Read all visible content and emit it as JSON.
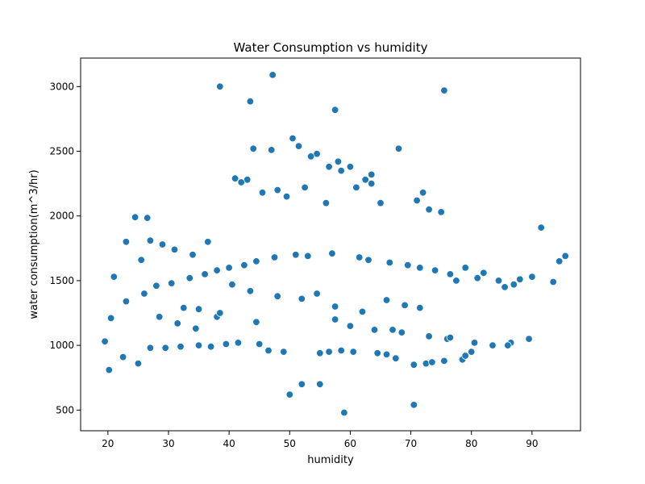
{
  "chart_data": {
    "type": "scatter",
    "title": "Water Consumption vs humidity",
    "xlabel": "humidity",
    "ylabel": "water consumption(m^3/hr)",
    "xlim": [
      15.5,
      98.0
    ],
    "ylim": [
      340,
      3220
    ],
    "x_ticks": [
      20,
      30,
      40,
      50,
      60,
      70,
      80,
      90
    ],
    "y_ticks": [
      500,
      1000,
      1500,
      2000,
      2500,
      3000
    ],
    "grid": false,
    "legend": "none",
    "marker_color": "#1f77b4",
    "marker_edge_color": "#ffffff",
    "series": [
      {
        "x": [
          38.5,
          47.2,
          43.5,
          75.5,
          57.5,
          68.0,
          50.5,
          51.5,
          44.0,
          47.0,
          54.5,
          53.5,
          56.5,
          58.0,
          60.0,
          63.5,
          58.5,
          62.5,
          41.0,
          43.0,
          42.0,
          45.5,
          61.0,
          48.0,
          49.5,
          52.5,
          63.5,
          72.0,
          71.0,
          65.0,
          73.0,
          75.0,
          56.0,
          26.5,
          24.5,
          21.0,
          19.5,
          20.2,
          22.5,
          25.0,
          27.0,
          29.5,
          32.0,
          35.0,
          37.0,
          39.5,
          41.5,
          45.0,
          46.5,
          49.0,
          55.0,
          56.5,
          58.5,
          60.5,
          64.5,
          66.0,
          67.5,
          70.5,
          72.5,
          73.5,
          75.5,
          78.5,
          79.0,
          80.0,
          83.5,
          86.5,
          89.5,
          70.5,
          50.0,
          52.0,
          55.0,
          59.0,
          91.5,
          93.5,
          95.5,
          94.5,
          90.0,
          88.0,
          85.5,
          82.0,
          79.0,
          77.5,
          20.5,
          23.0,
          26.0,
          28.0,
          30.5,
          33.5,
          36.0,
          38.0,
          40.0,
          42.5,
          44.5,
          47.5,
          51.0,
          53.0,
          57.0,
          61.5,
          63.0,
          66.5,
          69.5,
          71.5,
          74.0,
          76.5,
          81.0,
          84.5,
          87.0,
          27.0,
          29.0,
          31.0,
          34.0,
          36.5,
          23.0,
          25.5,
          28.5,
          31.5,
          34.5,
          64.0,
          68.5,
          73.0,
          76.0,
          80.5,
          86.0,
          38.0,
          44.5,
          60.0,
          67.0,
          76.5,
          48.0,
          52.0,
          57.5,
          62.0,
          40.5,
          43.5,
          66.0,
          69.0,
          71.5,
          35.0,
          38.5,
          32.5,
          57.5,
          54.5
        ],
        "y": [
          3000,
          3090,
          2885,
          2970,
          2820,
          2520,
          2600,
          2540,
          2520,
          2510,
          2480,
          2460,
          2380,
          2420,
          2380,
          2320,
          2350,
          2280,
          2290,
          2280,
          2260,
          2180,
          2220,
          2200,
          2150,
          2220,
          2250,
          2180,
          2120,
          2100,
          2050,
          2030,
          2100,
          1985,
          1990,
          1530,
          1030,
          810,
          910,
          860,
          980,
          980,
          990,
          1000,
          990,
          1010,
          1020,
          1010,
          960,
          950,
          940,
          950,
          960,
          950,
          940,
          930,
          900,
          850,
          860,
          870,
          880,
          890,
          920,
          950,
          1000,
          1020,
          1050,
          540,
          620,
          700,
          700,
          480,
          1910,
          1490,
          1690,
          1650,
          1530,
          1510,
          1450,
          1560,
          1600,
          1500,
          1210,
          1340,
          1400,
          1460,
          1480,
          1520,
          1550,
          1580,
          1600,
          1620,
          1650,
          1680,
          1700,
          1690,
          1710,
          1680,
          1660,
          1640,
          1620,
          1600,
          1580,
          1550,
          1520,
          1500,
          1470,
          1810,
          1780,
          1740,
          1700,
          1800,
          1800,
          1660,
          1220,
          1170,
          1130,
          1120,
          1100,
          1070,
          1050,
          1020,
          1000,
          1220,
          1180,
          1150,
          1120,
          1060,
          1380,
          1360,
          1300,
          1260,
          1470,
          1420,
          1350,
          1310,
          1290,
          1280,
          1250,
          1290,
          1200,
          1400
        ]
      }
    ]
  }
}
